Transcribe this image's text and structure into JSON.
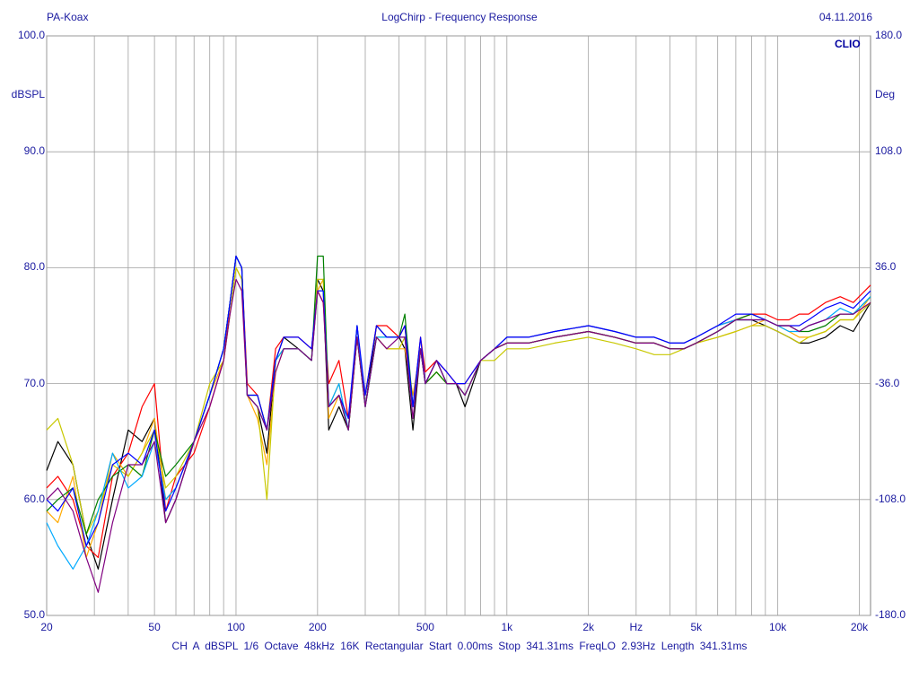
{
  "header": {
    "left": "PA-Koax",
    "center": "LogChirp - Frequency Response",
    "right": "04.11.2016"
  },
  "brand": "CLIO",
  "footer": "CH A   dBSPL   1/6 Octave   48kHz   16K   Rectangular   Start 0.00ms   Stop 341.31ms   FreqLO 2.93Hz   Length 341.31ms",
  "chart_data": {
    "type": "line",
    "xscale": "log",
    "xlim": [
      20,
      22000
    ],
    "ylim": [
      50,
      100
    ],
    "y2lim": [
      -180,
      180
    ],
    "ylabel": "dBSPL",
    "y2label": "Deg",
    "xunit": "Hz",
    "grid": true,
    "y_ticks": [
      "100.0",
      "90.0",
      "80.0",
      "70.0",
      "60.0",
      "50.0"
    ],
    "y2_ticks": [
      "180.0",
      "108.0",
      "36.0",
      "-36.0",
      "-108.0",
      "-180.0"
    ],
    "x_ticks": [
      {
        "v": 20,
        "t": "20"
      },
      {
        "v": 50,
        "t": "50"
      },
      {
        "v": 100,
        "t": "100"
      },
      {
        "v": 200,
        "t": "200"
      },
      {
        "v": 500,
        "t": "500"
      },
      {
        "v": 1000,
        "t": "1k"
      },
      {
        "v": 2000,
        "t": "2k"
      },
      {
        "v": 3000,
        "t": "Hz"
      },
      {
        "v": 5000,
        "t": "5k"
      },
      {
        "v": 10000,
        "t": "10k"
      },
      {
        "v": 20000,
        "t": "20k"
      }
    ],
    "x": [
      20,
      22,
      25,
      28,
      31,
      35,
      40,
      45,
      50,
      55,
      60,
      70,
      80,
      90,
      95,
      100,
      105,
      110,
      120,
      130,
      140,
      150,
      170,
      190,
      200,
      210,
      220,
      240,
      260,
      280,
      300,
      330,
      360,
      400,
      420,
      450,
      480,
      500,
      550,
      600,
      650,
      700,
      800,
      900,
      1000,
      1200,
      1500,
      2000,
      2500,
      3000,
      3500,
      4000,
      4500,
      5000,
      6000,
      7000,
      8000,
      9000,
      10000,
      11000,
      12000,
      13000,
      15000,
      17000,
      19000,
      22000
    ],
    "series": [
      {
        "color": "#000000",
        "values": [
          62.5,
          65,
          63,
          57,
          54,
          60,
          66,
          65,
          67,
          58,
          60,
          65,
          69,
          73,
          77,
          81,
          80,
          69,
          68,
          64,
          72,
          74,
          73,
          72,
          79,
          78,
          66,
          68,
          66,
          75,
          68,
          75,
          74,
          74,
          73,
          66,
          73,
          70,
          72,
          70,
          70,
          68,
          72,
          73,
          73.5,
          73.5,
          74,
          74.5,
          74,
          73.5,
          73.5,
          73,
          73,
          73.5,
          74.5,
          75.5,
          75.5,
          75,
          74.5,
          74,
          73.5,
          73.5,
          74,
          75,
          74.5,
          77
        ]
      },
      {
        "color": "#ff0000",
        "values": [
          61,
          62,
          60,
          56,
          55,
          62,
          64,
          68,
          70,
          59,
          62,
          64,
          68,
          72,
          77,
          81,
          80,
          70,
          69,
          66,
          73,
          74,
          74,
          73,
          78,
          77,
          70,
          72,
          67,
          74,
          69,
          75,
          75,
          74,
          75,
          68,
          74,
          71,
          72,
          71,
          70,
          70,
          72,
          73,
          74,
          74,
          74.5,
          75,
          74.5,
          74,
          74,
          73.5,
          73.5,
          74,
          75,
          75.5,
          76,
          76,
          75.5,
          75.5,
          76,
          76,
          77,
          77.5,
          77,
          78.5
        ]
      },
      {
        "color": "#ffaa00",
        "values": [
          59,
          58,
          62,
          55,
          58,
          64,
          62,
          64,
          67,
          60,
          61,
          65,
          69,
          72,
          76,
          80,
          79,
          69,
          67,
          63,
          71,
          73,
          73,
          72,
          78,
          79,
          67,
          69,
          66,
          74,
          68,
          74,
          73,
          73,
          73,
          69,
          73,
          70,
          71,
          70,
          70,
          69,
          72,
          73,
          73.5,
          73.5,
          74,
          74.5,
          74,
          73.5,
          73.5,
          73,
          73,
          73.5,
          74,
          74.5,
          75,
          75.5,
          75,
          74.5,
          74,
          74,
          74.5,
          75.5,
          75.5,
          77.5
        ]
      },
      {
        "color": "#c8c800",
        "values": [
          66,
          67,
          63,
          57,
          59,
          63,
          62,
          64,
          66,
          61,
          62,
          65,
          70,
          72,
          76,
          80,
          79,
          69,
          68,
          60,
          72,
          73,
          73,
          72,
          79,
          79,
          68,
          70,
          66,
          74,
          68,
          74,
          73,
          73,
          74,
          68,
          73,
          70,
          71,
          70,
          70,
          69,
          72,
          72,
          73,
          73,
          73.5,
          74,
          73.5,
          73,
          72.5,
          72.5,
          73,
          73.5,
          74,
          74.5,
          75,
          75,
          74.5,
          74,
          73.5,
          74,
          74.5,
          75.5,
          75.5,
          77
        ]
      },
      {
        "color": "#008000",
        "values": [
          59,
          60,
          61,
          57,
          60,
          62,
          63,
          62,
          66,
          62,
          63,
          65,
          69,
          73,
          77,
          81,
          80,
          69,
          69,
          66,
          72,
          73,
          73,
          72,
          81,
          81,
          68,
          69,
          66,
          74,
          68,
          74,
          74,
          74,
          76,
          68,
          73,
          70,
          71,
          70,
          70,
          69,
          72,
          73,
          73.5,
          73.5,
          74,
          74.5,
          74,
          73.5,
          73.5,
          73,
          73,
          73.5,
          74.5,
          75.5,
          76,
          75.5,
          75,
          75,
          74.5,
          74.5,
          75,
          76,
          76,
          77.5
        ]
      },
      {
        "color": "#00aaff",
        "values": [
          58,
          56,
          54,
          56,
          59,
          64,
          61,
          62,
          65,
          60,
          61,
          65,
          69,
          73,
          77,
          81,
          80,
          69,
          68,
          66,
          72,
          73,
          73,
          72,
          78,
          78,
          68,
          70,
          66,
          75,
          68,
          74,
          74,
          74,
          74,
          68,
          73,
          70,
          72,
          70,
          70,
          69,
          72,
          73,
          74,
          74,
          74.5,
          75,
          74.5,
          74,
          74,
          73.5,
          73.5,
          74,
          75,
          75.5,
          75.5,
          75.5,
          75,
          74.5,
          74.5,
          75,
          75.5,
          76.5,
          76,
          77.5
        ]
      },
      {
        "color": "#0000ff",
        "values": [
          60,
          59,
          61,
          56,
          58,
          63,
          64,
          63,
          66,
          59,
          61,
          65,
          69,
          73,
          77,
          81,
          80,
          69,
          69,
          66,
          72,
          74,
          74,
          73,
          78,
          78,
          68,
          69,
          67,
          75,
          69,
          75,
          74,
          74,
          75,
          68,
          74,
          70,
          72,
          71,
          70,
          70,
          72,
          73,
          74,
          74,
          74.5,
          75,
          74.5,
          74,
          74,
          73.5,
          73.5,
          74,
          75,
          76,
          76,
          75.5,
          75,
          75,
          75,
          75.5,
          76.5,
          77,
          76.5,
          78
        ]
      },
      {
        "color": "#800080",
        "values": [
          60,
          61,
          59,
          55,
          52,
          58,
          63,
          63,
          65,
          58,
          60,
          65,
          68,
          72,
          76,
          79,
          78,
          69,
          68,
          66,
          71,
          73,
          73,
          72,
          78,
          77,
          68,
          69,
          66,
          74,
          68,
          74,
          73,
          74,
          74,
          67,
          73,
          70,
          72,
          70,
          70,
          69,
          72,
          73,
          73.5,
          73.5,
          74,
          74.5,
          74,
          73.5,
          73.5,
          73,
          73,
          73.5,
          74.5,
          75.5,
          75.5,
          75.5,
          75,
          75,
          74.5,
          75,
          75.5,
          76,
          76,
          77
        ]
      }
    ]
  }
}
